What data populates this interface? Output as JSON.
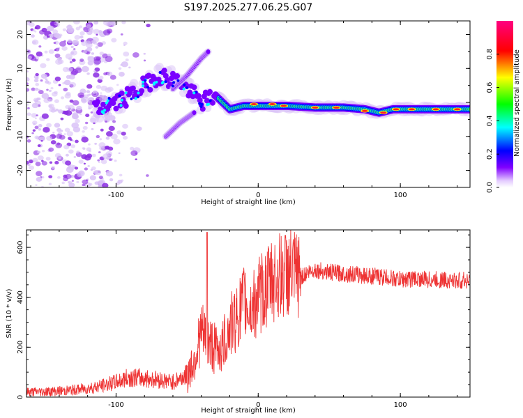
{
  "chart_data": [
    {
      "type": "heatmap",
      "title": "S197.2025.277.06.25.G07",
      "xlabel": "Height of straight line (km)",
      "ylabel": "Frequency (Hz)",
      "xlim": [
        -163,
        149
      ],
      "ylim": [
        -25,
        24
      ],
      "xticks": [
        -100,
        0,
        100
      ],
      "xtick_labels": [
        "-100",
        "0",
        "100"
      ],
      "yticks": [
        -20,
        -10,
        0,
        10,
        20
      ],
      "ytick_labels": [
        "-20",
        "-10",
        "0",
        "10",
        "20"
      ],
      "colorbar": {
        "label": "Normalized spectral amplitude",
        "ticks": [
          0.0,
          0.2,
          0.4,
          0.6,
          0.8
        ],
        "tick_labels": [
          "0.0",
          "0.2",
          "0.4",
          "0.6",
          "0.8"
        ],
        "range": [
          0,
          1
        ],
        "colors": [
          "#ffffff",
          "#8000ff",
          "#0000ff",
          "#00ffff",
          "#00ff00",
          "#ffff00",
          "#ff0000",
          "#ff00a0"
        ]
      },
      "ridge": {
        "description_values": "main frequency ridge in data units (km, Hz)",
        "points": [
          [
            -110,
            -1.5
          ],
          [
            -100,
            0
          ],
          [
            -90,
            2
          ],
          [
            -80,
            5
          ],
          [
            -70,
            8
          ],
          [
            -55,
            6
          ],
          [
            -40,
            0
          ],
          [
            -30,
            2
          ],
          [
            -20,
            -2
          ],
          [
            -10,
            -1
          ],
          [
            0,
            -1
          ],
          [
            10,
            -1
          ],
          [
            20,
            -1
          ],
          [
            40,
            -1.5
          ],
          [
            60,
            -1.5
          ],
          [
            75,
            -2
          ],
          [
            85,
            -3
          ],
          [
            95,
            -2
          ],
          [
            110,
            -2
          ],
          [
            130,
            -2
          ],
          [
            149,
            -2
          ]
        ],
        "upper_branch": [
          [
            -60,
            4
          ],
          [
            -50,
            8
          ],
          [
            -40,
            13
          ],
          [
            -35,
            15
          ]
        ],
        "lower_branch": [
          [
            -65,
            -10
          ],
          [
            -55,
            -6
          ],
          [
            -45,
            -3
          ]
        ]
      }
    },
    {
      "type": "line",
      "title": "",
      "xlabel": "Height of straight line (km)",
      "ylabel": "SNR (10 * v/v)",
      "xlim": [
        -163,
        149
      ],
      "ylim": [
        0,
        670
      ],
      "xticks": [
        -100,
        0,
        100
      ],
      "xtick_labels": [
        "-100",
        "0",
        "100"
      ],
      "yticks": [
        0,
        200,
        400,
        600
      ],
      "ytick_labels": [
        "0",
        "200",
        "400",
        "600"
      ],
      "line_color": "#ee3333",
      "series": [
        {
          "name": "SNR",
          "x": [
            -163,
            -150,
            -140,
            -130,
            -120,
            -110,
            -100,
            -90,
            -80,
            -70,
            -60,
            -50,
            -45,
            -40,
            -35,
            -30,
            -25,
            -20,
            -15,
            -10,
            -5,
            0,
            5,
            10,
            15,
            20,
            25,
            30,
            35,
            40,
            50,
            60,
            70,
            80,
            90,
            100,
            110,
            120,
            130,
            140,
            149
          ],
          "values": [
            20,
            22,
            24,
            28,
            35,
            45,
            60,
            80,
            75,
            70,
            60,
            90,
            150,
            260,
            220,
            190,
            200,
            280,
            320,
            380,
            350,
            400,
            430,
            470,
            480,
            500,
            490,
            480,
            500,
            510,
            500,
            495,
            490,
            485,
            480,
            470,
            475,
            470,
            470,
            465,
            470
          ]
        }
      ]
    }
  ]
}
